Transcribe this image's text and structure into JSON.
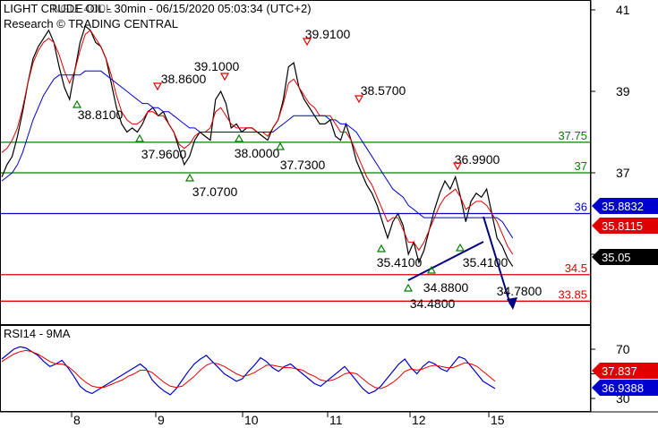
{
  "header": {
    "title": "LIGHT CRUDE OIL - 30min - 06/15/2020 05:03:34 (UTC+2)",
    "subtitle": "Research © TRADING CENTRAL",
    "symbol_overlay": "NGLE4O0L"
  },
  "chart_data": [
    {
      "type": "line",
      "panel": "price",
      "ylim": [
        32.9,
        41.4
      ],
      "y_ticks": [
        35,
        37,
        39,
        41
      ],
      "x_ticks": [
        "8",
        "9",
        "10",
        "11",
        "12",
        "15"
      ],
      "last_price": "35.05",
      "grid": false,
      "levels": [
        {
          "value": 37.75,
          "label": "37.75",
          "color": "#008000"
        },
        {
          "value": 37,
          "label": "37",
          "color": "#008000"
        },
        {
          "value": 36,
          "label": "36",
          "color": "#0000cc"
        },
        {
          "value": 34.5,
          "label": "34.5",
          "color": "#e00000"
        },
        {
          "value": 33.85,
          "label": "33.85",
          "color": "#e00000"
        }
      ],
      "value_badges": [
        {
          "label": "35.8832",
          "value": 35.8832,
          "color": "#0000cc"
        },
        {
          "label": "35.8115",
          "value": 35.8115,
          "color": "#e00000"
        },
        {
          "label": "35.05",
          "value": 35.05,
          "color": "#000000"
        }
      ],
      "annotations": [
        {
          "label": "38.8100",
          "type": "low"
        },
        {
          "label": "38.8600",
          "type": "high"
        },
        {
          "label": "39.1000",
          "type": "high"
        },
        {
          "label": "39.9100",
          "type": "high"
        },
        {
          "label": "38.5700",
          "type": "high"
        },
        {
          "label": "37.9600",
          "type": "low"
        },
        {
          "label": "37.0700",
          "type": "low"
        },
        {
          "label": "38.0000",
          "type": "low"
        },
        {
          "label": "37.7300",
          "type": "low"
        },
        {
          "label": "36.9900",
          "type": "high"
        },
        {
          "label": "35.4100",
          "type": "low"
        },
        {
          "label": "35.4100",
          "type": "low"
        },
        {
          "label": "34.8800",
          "type": "low"
        },
        {
          "label": "34.4800",
          "type": "low"
        },
        {
          "label": "34.7800",
          "type": "target"
        }
      ],
      "series": [
        {
          "color": "#000000",
          "values": [
            36.9,
            37.2,
            37.4,
            37.9,
            38.5,
            39.2,
            39.8,
            40.1,
            40.3,
            40.5,
            40.2,
            39.6,
            39.1,
            38.8,
            39.5,
            40.2,
            40.6,
            40.5,
            40.2,
            40.1,
            39.8,
            39.2,
            38.6,
            38.2,
            38.0,
            38.1,
            38.0,
            38.2,
            38.5,
            38.6,
            38.4,
            38.5,
            38.2,
            38.0,
            37.6,
            37.2,
            37.4,
            37.8,
            38.0,
            37.9,
            37.8,
            38.8,
            39.0,
            38.7,
            38.1,
            38.2,
            38.0,
            38.1,
            38.1,
            38.0,
            37.9,
            37.8,
            38.1,
            38.3,
            38.8,
            39.6,
            39.7,
            39.1,
            38.8,
            38.6,
            38.4,
            38.2,
            38.2,
            38.3,
            37.9,
            37.8,
            38.2,
            37.8,
            37.3,
            37.0,
            36.7,
            36.5,
            36.2,
            35.8,
            35.4,
            35.8,
            36.0,
            35.7,
            35.0,
            35.3,
            34.8,
            35.1,
            35.6,
            36.1,
            36.5,
            36.8,
            36.6,
            36.9,
            36.4,
            35.8,
            36.3,
            36.5,
            36.4,
            36.6,
            36.0,
            35.4,
            35.2,
            34.9,
            34.7
          ]
        },
        {
          "color": "#e00000",
          "values": [
            37.5,
            37.6,
            37.8,
            38.1,
            38.6,
            39.2,
            39.7,
            40.0,
            40.2,
            40.3,
            40.2,
            39.9,
            39.5,
            39.2,
            39.5,
            40.0,
            40.4,
            40.5,
            40.3,
            40.1,
            39.8,
            39.4,
            38.9,
            38.5,
            38.3,
            38.2,
            38.2,
            38.3,
            38.5,
            38.5,
            38.4,
            38.4,
            38.2,
            38.0,
            37.7,
            37.6,
            37.7,
            37.9,
            38.0,
            38.0,
            38.1,
            38.5,
            38.6,
            38.4,
            38.2,
            38.1,
            38.1,
            38.1,
            38.1,
            38.0,
            38.0,
            37.9,
            38.1,
            38.3,
            38.7,
            39.2,
            39.3,
            39.1,
            38.9,
            38.7,
            38.6,
            38.4,
            38.4,
            38.4,
            38.2,
            38.0,
            38.0,
            37.8,
            37.5,
            37.2,
            36.9,
            36.7,
            36.4,
            36.1,
            35.8,
            35.9,
            35.9,
            35.6,
            35.3,
            35.3,
            35.1,
            35.3,
            35.6,
            35.9,
            36.2,
            36.4,
            36.5,
            36.6,
            36.4,
            36.1,
            36.2,
            36.3,
            36.3,
            36.2,
            36.0,
            35.8,
            35.5,
            35.2,
            35.0
          ]
        },
        {
          "color": "#0000cc",
          "values": [
            36.8,
            36.9,
            37.0,
            37.2,
            37.5,
            37.9,
            38.3,
            38.6,
            38.9,
            39.1,
            39.3,
            39.4,
            39.4,
            39.4,
            39.4,
            39.4,
            39.5,
            39.5,
            39.5,
            39.5,
            39.4,
            39.3,
            39.2,
            39.1,
            39.0,
            38.9,
            38.8,
            38.7,
            38.7,
            38.6,
            38.6,
            38.5,
            38.5,
            38.4,
            38.3,
            38.2,
            38.1,
            38.1,
            38.0,
            38.0,
            38.0,
            38.0,
            38.0,
            38.0,
            38.0,
            38.0,
            38.0,
            38.0,
            38.0,
            38.0,
            38.0,
            38.0,
            38.0,
            38.1,
            38.2,
            38.3,
            38.4,
            38.4,
            38.4,
            38.4,
            38.4,
            38.4,
            38.4,
            38.3,
            38.3,
            38.2,
            38.2,
            38.1,
            38.0,
            37.8,
            37.6,
            37.4,
            37.2,
            37.0,
            36.8,
            36.6,
            36.5,
            36.4,
            36.2,
            36.1,
            36.0,
            35.9,
            35.9,
            35.9,
            35.9,
            35.9,
            35.9,
            35.9,
            35.9,
            35.9,
            35.9,
            35.9,
            35.9,
            35.9,
            35.9,
            35.9,
            35.8,
            35.6,
            35.4
          ]
        }
      ]
    },
    {
      "type": "line",
      "panel": "indicator",
      "title": "RSI14 - 9MA",
      "ylim": [
        28,
        78
      ],
      "y_ticks": [
        30,
        50,
        70
      ],
      "value_badges": [
        {
          "label": "37.837",
          "value": 37.837,
          "color": "#e00000"
        },
        {
          "label": "36.9388",
          "value": 36.9388,
          "color": "#0000cc"
        }
      ],
      "series": [
        {
          "color": "#0000cc",
          "values": [
            62,
            66,
            70,
            72,
            71,
            68,
            65,
            60,
            56,
            58,
            61,
            55,
            48,
            40,
            36,
            34,
            37,
            40,
            43,
            46,
            49,
            52,
            55,
            58,
            54,
            45,
            40,
            36,
            33,
            38,
            45,
            52,
            58,
            62,
            65,
            60,
            55,
            50,
            47,
            44,
            46,
            52,
            57,
            63,
            60,
            55,
            52,
            56,
            58,
            54,
            50,
            46,
            42,
            40,
            44,
            48,
            52,
            56,
            50,
            44,
            38,
            34,
            36,
            40,
            46,
            52,
            58,
            62,
            55,
            50,
            56,
            60,
            58,
            54,
            52,
            58,
            64,
            62,
            56,
            50,
            44,
            41,
            38
          ]
        },
        {
          "color": "#e00000",
          "values": [
            60,
            63,
            66,
            68,
            69,
            68,
            66,
            63,
            60,
            58,
            58,
            56,
            52,
            47,
            43,
            40,
            39,
            39,
            41,
            43,
            45,
            48,
            50,
            53,
            53,
            51,
            47,
            43,
            40,
            39,
            40,
            44,
            48,
            53,
            57,
            59,
            58,
            56,
            53,
            50,
            48,
            49,
            51,
            54,
            57,
            57,
            56,
            55,
            55,
            54,
            53,
            50,
            48,
            45,
            44,
            45,
            47,
            50,
            51,
            50,
            46,
            42,
            39,
            38,
            40,
            43,
            47,
            52,
            54,
            53,
            54,
            56,
            57,
            56,
            55,
            55,
            57,
            59,
            58,
            56,
            52,
            48,
            44
          ]
        }
      ]
    }
  ]
}
